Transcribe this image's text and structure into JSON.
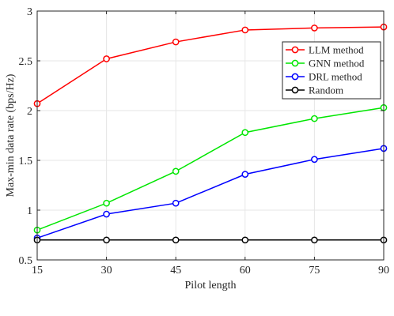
{
  "chart_data": {
    "type": "line",
    "title": "",
    "xlabel": "Pilot length",
    "ylabel": "Max-min data rate (bps/Hz)",
    "x": [
      15,
      30,
      45,
      60,
      75,
      90
    ],
    "xlim": [
      15,
      90
    ],
    "ylim": [
      0.5,
      3
    ],
    "xticks": [
      "15",
      "30",
      "45",
      "60",
      "75",
      "90"
    ],
    "yticks": [
      "0.5",
      "1",
      "1.5",
      "2",
      "2.5",
      "3"
    ],
    "grid": true,
    "legend_position": "top-right",
    "series": [
      {
        "name": "LLM method",
        "color": "#ff0000",
        "values": [
          2.07,
          2.52,
          2.69,
          2.81,
          2.83,
          2.84
        ]
      },
      {
        "name": "GNN method",
        "color": "#00e600",
        "values": [
          0.8,
          1.07,
          1.39,
          1.78,
          1.92,
          2.03
        ]
      },
      {
        "name": "DRL method",
        "color": "#0000ff",
        "values": [
          0.72,
          0.96,
          1.07,
          1.36,
          1.51,
          1.62
        ]
      },
      {
        "name": "Random",
        "color": "#000000",
        "values": [
          0.7,
          0.7,
          0.7,
          0.7,
          0.7,
          0.7
        ]
      }
    ]
  }
}
